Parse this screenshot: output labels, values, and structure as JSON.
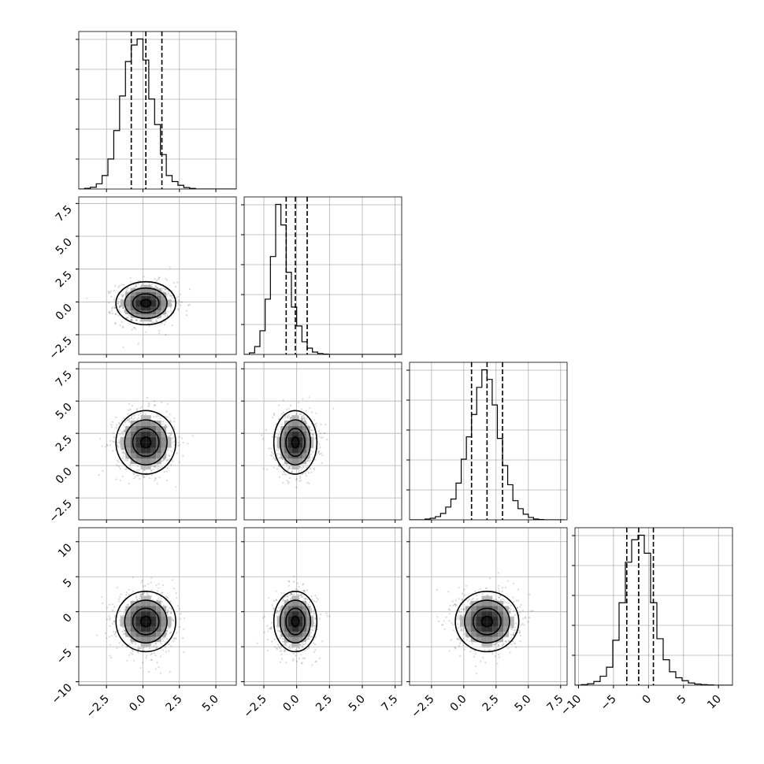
{
  "chart_data": {
    "type": "corner",
    "title": "",
    "dimensions": 4,
    "axis_ranges": [
      [
        -4.4,
        6.4
      ],
      [
        -4.0,
        8.0
      ],
      [
        -4.2,
        8.0
      ],
      [
        -10.5,
        12.0
      ]
    ],
    "tick_values": [
      [
        -2.5,
        0.0,
        2.5,
        5.0
      ],
      [
        -2.5,
        0.0,
        2.5,
        5.0,
        7.5
      ],
      [
        -2.5,
        0.0,
        2.5,
        5.0,
        7.5
      ],
      [
        -10,
        -5,
        0,
        5,
        10
      ]
    ],
    "tick_labels": [
      [
        "−2.5",
        "0.0",
        "2.5",
        "5.0"
      ],
      [
        "−2.5",
        "0.0",
        "2.5",
        "5.0",
        "7.5"
      ],
      [
        "−2.5",
        "0.0",
        "2.5",
        "5.0",
        "7.5"
      ],
      [
        "−10",
        "−5",
        "0",
        "5",
        "10"
      ]
    ],
    "means": [
      0.2,
      -0.1,
      1.8,
      -1.4
    ],
    "stds": [
      1.0,
      0.8,
      1.2,
      2.1
    ],
    "quantile_lines": [
      [
        -0.8,
        0.2,
        1.3
      ],
      [
        -0.8,
        -0.1,
        0.8
      ],
      [
        0.6,
        1.8,
        3.0
      ],
      [
        -3.1,
        -1.4,
        0.7
      ]
    ],
    "histograms": [
      {
        "bin_edges": [
          -4.4,
          -4.0,
          -3.6,
          -3.2,
          -2.8,
          -2.4,
          -2.0,
          -1.6,
          -1.2,
          -0.8,
          -0.4,
          0.0,
          0.4,
          0.8,
          1.2,
          1.6,
          2.0,
          2.4,
          2.8,
          3.2,
          3.6,
          4.0,
          4.4,
          4.8,
          5.2,
          5.6,
          6.0,
          6.4
        ],
        "counts": [
          0,
          0.005,
          0.012,
          0.035,
          0.09,
          0.2,
          0.39,
          0.62,
          0.85,
          0.96,
          1.0,
          0.86,
          0.6,
          0.43,
          0.23,
          0.09,
          0.05,
          0.025,
          0.01,
          0.004,
          0,
          0,
          0,
          0,
          0,
          0,
          0
        ]
      },
      {
        "bin_edges": [
          -4.0,
          -3.6,
          -3.2,
          -2.8,
          -2.4,
          -2.0,
          -1.6,
          -1.2,
          -0.8,
          -0.4,
          0.0,
          0.4,
          0.8,
          1.2,
          1.6,
          2.0,
          2.4,
          2.8,
          3.2,
          3.6,
          4.0,
          4.4,
          4.8,
          5.2,
          5.6,
          6.0,
          6.4,
          6.8,
          7.2,
          7.6,
          8.0
        ],
        "counts": [
          0,
          0.01,
          0.05,
          0.15,
          0.35,
          0.62,
          0.95,
          0.82,
          0.52,
          0.3,
          0.18,
          0.08,
          0.04,
          0.015,
          0.006,
          0.002,
          0,
          0,
          0,
          0,
          0,
          0,
          0,
          0,
          0,
          0,
          0,
          0,
          0,
          0
        ]
      },
      {
        "bin_edges": [
          -4.2,
          -3.8,
          -3.4,
          -3.0,
          -2.6,
          -2.2,
          -1.8,
          -1.4,
          -1.0,
          -0.6,
          -0.2,
          0.2,
          0.6,
          1.0,
          1.4,
          1.8,
          2.2,
          2.6,
          3.0,
          3.4,
          3.8,
          4.2,
          4.6,
          5.0,
          5.4,
          5.8,
          6.2,
          6.6,
          7.0,
          7.4,
          7.8
        ],
        "counts": [
          0,
          0,
          0,
          0.005,
          0.01,
          0.02,
          0.04,
          0.08,
          0.13,
          0.23,
          0.38,
          0.52,
          0.66,
          0.83,
          0.94,
          0.88,
          0.72,
          0.51,
          0.34,
          0.22,
          0.12,
          0.07,
          0.035,
          0.015,
          0.005,
          0.002,
          0,
          0,
          0,
          0
        ]
      },
      {
        "bin_edges": [
          -10.5,
          -9.6,
          -8.7,
          -7.8,
          -6.9,
          -6.0,
          -5.1,
          -4.2,
          -3.3,
          -2.4,
          -1.5,
          -0.6,
          0.3,
          1.2,
          2.1,
          3.0,
          3.9,
          4.8,
          5.7,
          6.6,
          7.5,
          8.4,
          9.3,
          10.2,
          11.1,
          12.0
        ],
        "counts": [
          0,
          0.004,
          0.01,
          0.025,
          0.06,
          0.12,
          0.3,
          0.55,
          0.82,
          0.97,
          1.0,
          0.88,
          0.55,
          0.31,
          0.17,
          0.09,
          0.05,
          0.03,
          0.015,
          0.008,
          0.004,
          0.002,
          0,
          0,
          0
        ]
      }
    ],
    "grid": true,
    "x_tick_labels_rotation_deg": 45,
    "y_tick_labels_rotation_deg": 45,
    "contour_levels": 4,
    "scatter_alpha": 0.15
  }
}
